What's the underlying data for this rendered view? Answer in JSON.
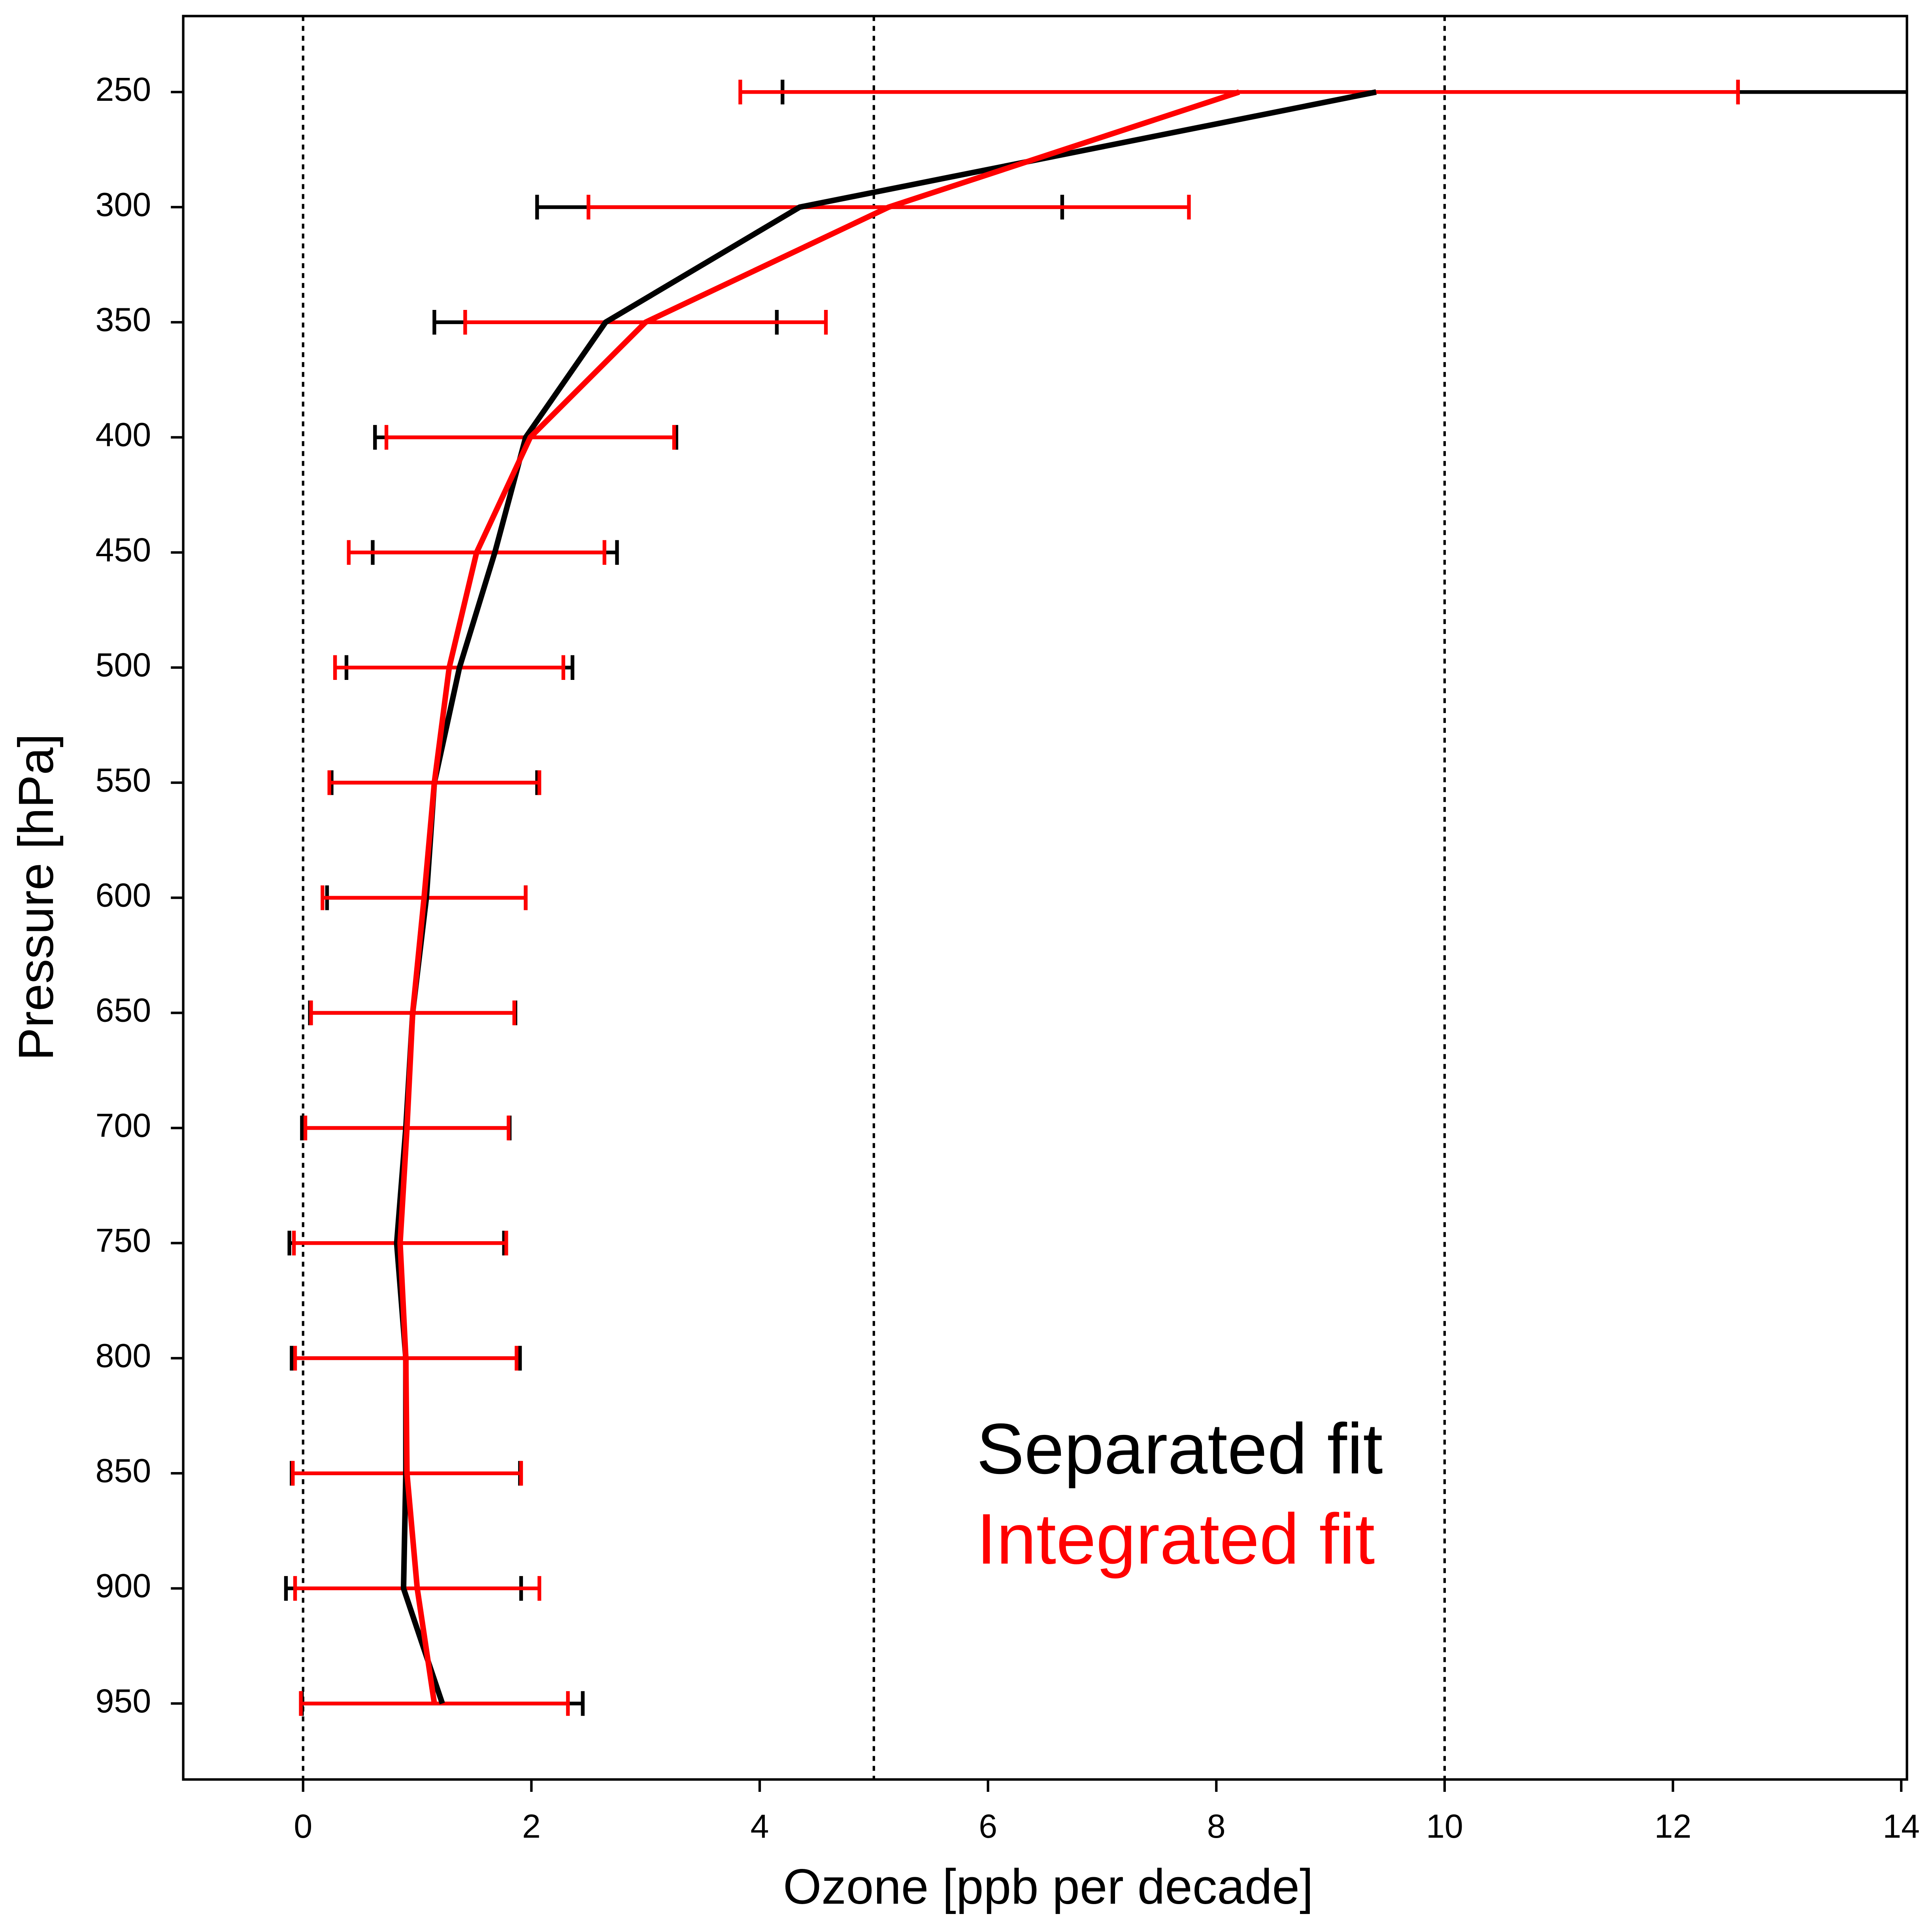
{
  "chart_data": {
    "type": "profile",
    "xlabel": "Ozone [ppb per decade]",
    "ylabel": "Pressure [hPa]",
    "y": [
      250,
      300,
      350,
      400,
      450,
      500,
      550,
      600,
      650,
      700,
      750,
      800,
      850,
      900,
      950
    ],
    "series": [
      {
        "name": "Separated fit",
        "color": "#000000",
        "values": [
          9.4,
          4.35,
          2.65,
          1.95,
          1.68,
          1.37,
          1.15,
          1.08,
          0.96,
          0.9,
          0.82,
          0.9,
          0.9,
          0.88,
          1.22
        ],
        "errors": [
          5.2,
          2.3,
          1.5,
          1.32,
          1.07,
          0.99,
          0.9,
          0.87,
          0.9,
          0.91,
          0.94,
          1.0,
          1.0,
          1.03,
          1.23
        ]
      },
      {
        "name": "Integrated fit",
        "color": "#ff0000",
        "values": [
          8.2,
          5.13,
          3.0,
          1.99,
          1.52,
          1.28,
          1.15,
          1.06,
          0.96,
          0.91,
          0.85,
          0.9,
          0.91,
          1.0,
          1.15
        ],
        "errors": [
          4.37,
          2.63,
          1.58,
          1.26,
          1.12,
          1.0,
          0.92,
          0.89,
          0.89,
          0.89,
          0.93,
          0.97,
          1.0,
          1.07,
          1.17
        ]
      }
    ],
    "xlim": [
      -1.05,
      14.05
    ],
    "ylim": [
      983,
      217
    ],
    "xticks": [
      0,
      2,
      4,
      6,
      8,
      10,
      12,
      14
    ],
    "yticks": [
      250,
      300,
      350,
      400,
      450,
      500,
      550,
      600,
      650,
      700,
      750,
      800,
      850,
      900,
      950
    ],
    "vlines": [
      0,
      5,
      10
    ],
    "legend": "lower right"
  }
}
